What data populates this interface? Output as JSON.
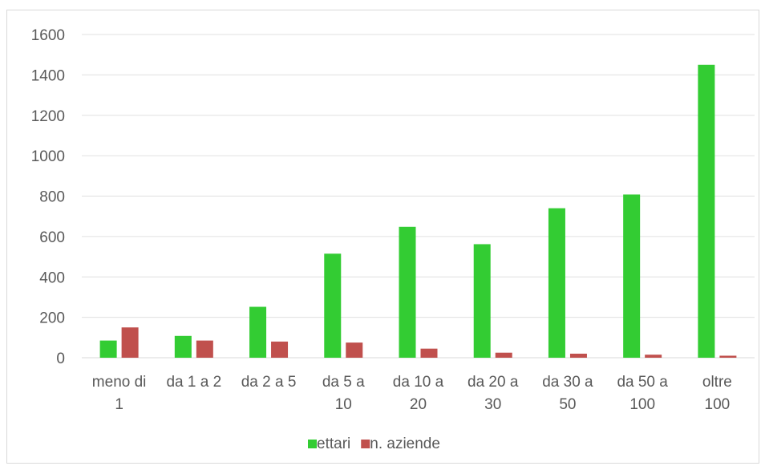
{
  "chart_data": {
    "type": "bar",
    "title": "",
    "xlabel": "",
    "ylabel": "",
    "ylim": [
      0,
      1600
    ],
    "yticks": [
      0,
      200,
      400,
      600,
      800,
      1000,
      1200,
      1400,
      1600
    ],
    "grid": true,
    "legend_position": "bottom",
    "categories": [
      [
        "meno di",
        "1"
      ],
      [
        "da 1 a 2"
      ],
      [
        "da 2 a 5"
      ],
      [
        "da 5 a",
        "10"
      ],
      [
        "da 10 a",
        "20"
      ],
      [
        "da 20 a",
        "30"
      ],
      [
        "da 30 a",
        "50"
      ],
      [
        "da 50 a",
        "100"
      ],
      [
        "oltre",
        "100"
      ]
    ],
    "series": [
      {
        "name": "ettari",
        "color": "#33cc33",
        "values": [
          85,
          108,
          252,
          515,
          648,
          562,
          740,
          808,
          1450
        ]
      },
      {
        "name": "n. aziende",
        "color": "#c0504d",
        "values": [
          150,
          85,
          80,
          75,
          45,
          25,
          20,
          15,
          10
        ]
      }
    ]
  }
}
